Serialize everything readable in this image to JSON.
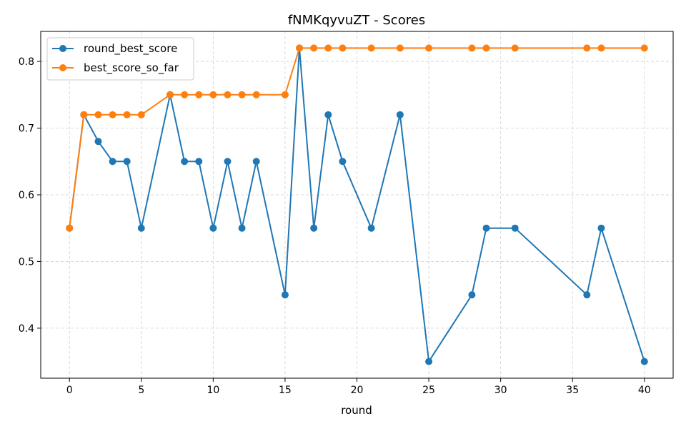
{
  "chart_data": {
    "type": "line",
    "title": "fNMKqyvuZT - Scores",
    "xlabel": "round",
    "ylabel": "",
    "xlim": [
      -2,
      42
    ],
    "ylim": [
      0.325,
      0.845
    ],
    "xticks": [
      0,
      5,
      10,
      15,
      20,
      25,
      30,
      35,
      40
    ],
    "yticks": [
      0.4,
      0.5,
      0.6,
      0.7,
      0.8
    ],
    "grid": true,
    "legend_position": "top-left",
    "series": [
      {
        "name": "round_best_score",
        "color": "#1f77b4",
        "x": [
          0,
          1,
          2,
          3,
          4,
          5,
          7,
          8,
          9,
          10,
          11,
          12,
          13,
          15,
          16,
          17,
          18,
          19,
          21,
          23,
          25,
          28,
          29,
          31,
          36,
          37,
          40
        ],
        "y": [
          0.55,
          0.72,
          0.68,
          0.65,
          0.65,
          0.55,
          0.75,
          0.65,
          0.65,
          0.55,
          0.65,
          0.55,
          0.65,
          0.45,
          0.82,
          0.55,
          0.72,
          0.65,
          0.55,
          0.72,
          0.35,
          0.45,
          0.55,
          0.55,
          0.45,
          0.55,
          0.35
        ]
      },
      {
        "name": "best_score_so_far",
        "color": "#ff7f0e",
        "x": [
          0,
          1,
          2,
          3,
          4,
          5,
          7,
          8,
          9,
          10,
          11,
          12,
          13,
          15,
          16,
          17,
          18,
          19,
          21,
          23,
          25,
          28,
          29,
          31,
          36,
          37,
          40
        ],
        "y": [
          0.55,
          0.72,
          0.72,
          0.72,
          0.72,
          0.72,
          0.75,
          0.75,
          0.75,
          0.75,
          0.75,
          0.75,
          0.75,
          0.75,
          0.82,
          0.82,
          0.82,
          0.82,
          0.82,
          0.82,
          0.82,
          0.82,
          0.82,
          0.82,
          0.82,
          0.82,
          0.82
        ]
      }
    ]
  }
}
